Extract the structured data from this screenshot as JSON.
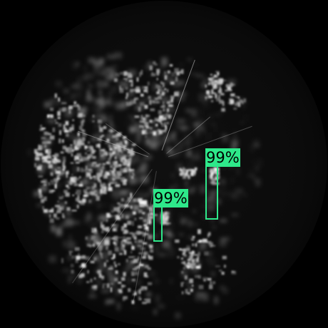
{
  "view": {
    "type": "sonar-radar-sweep",
    "background_color": "#000000",
    "disc_color": "#0a0a0a",
    "echo_color": "#d8d8d8"
  },
  "detections": {
    "box_color": "#2ee88a",
    "label_text_color": "#000000",
    "items": [
      {
        "label": "99%"
      },
      {
        "label": "99%"
      }
    ]
  }
}
